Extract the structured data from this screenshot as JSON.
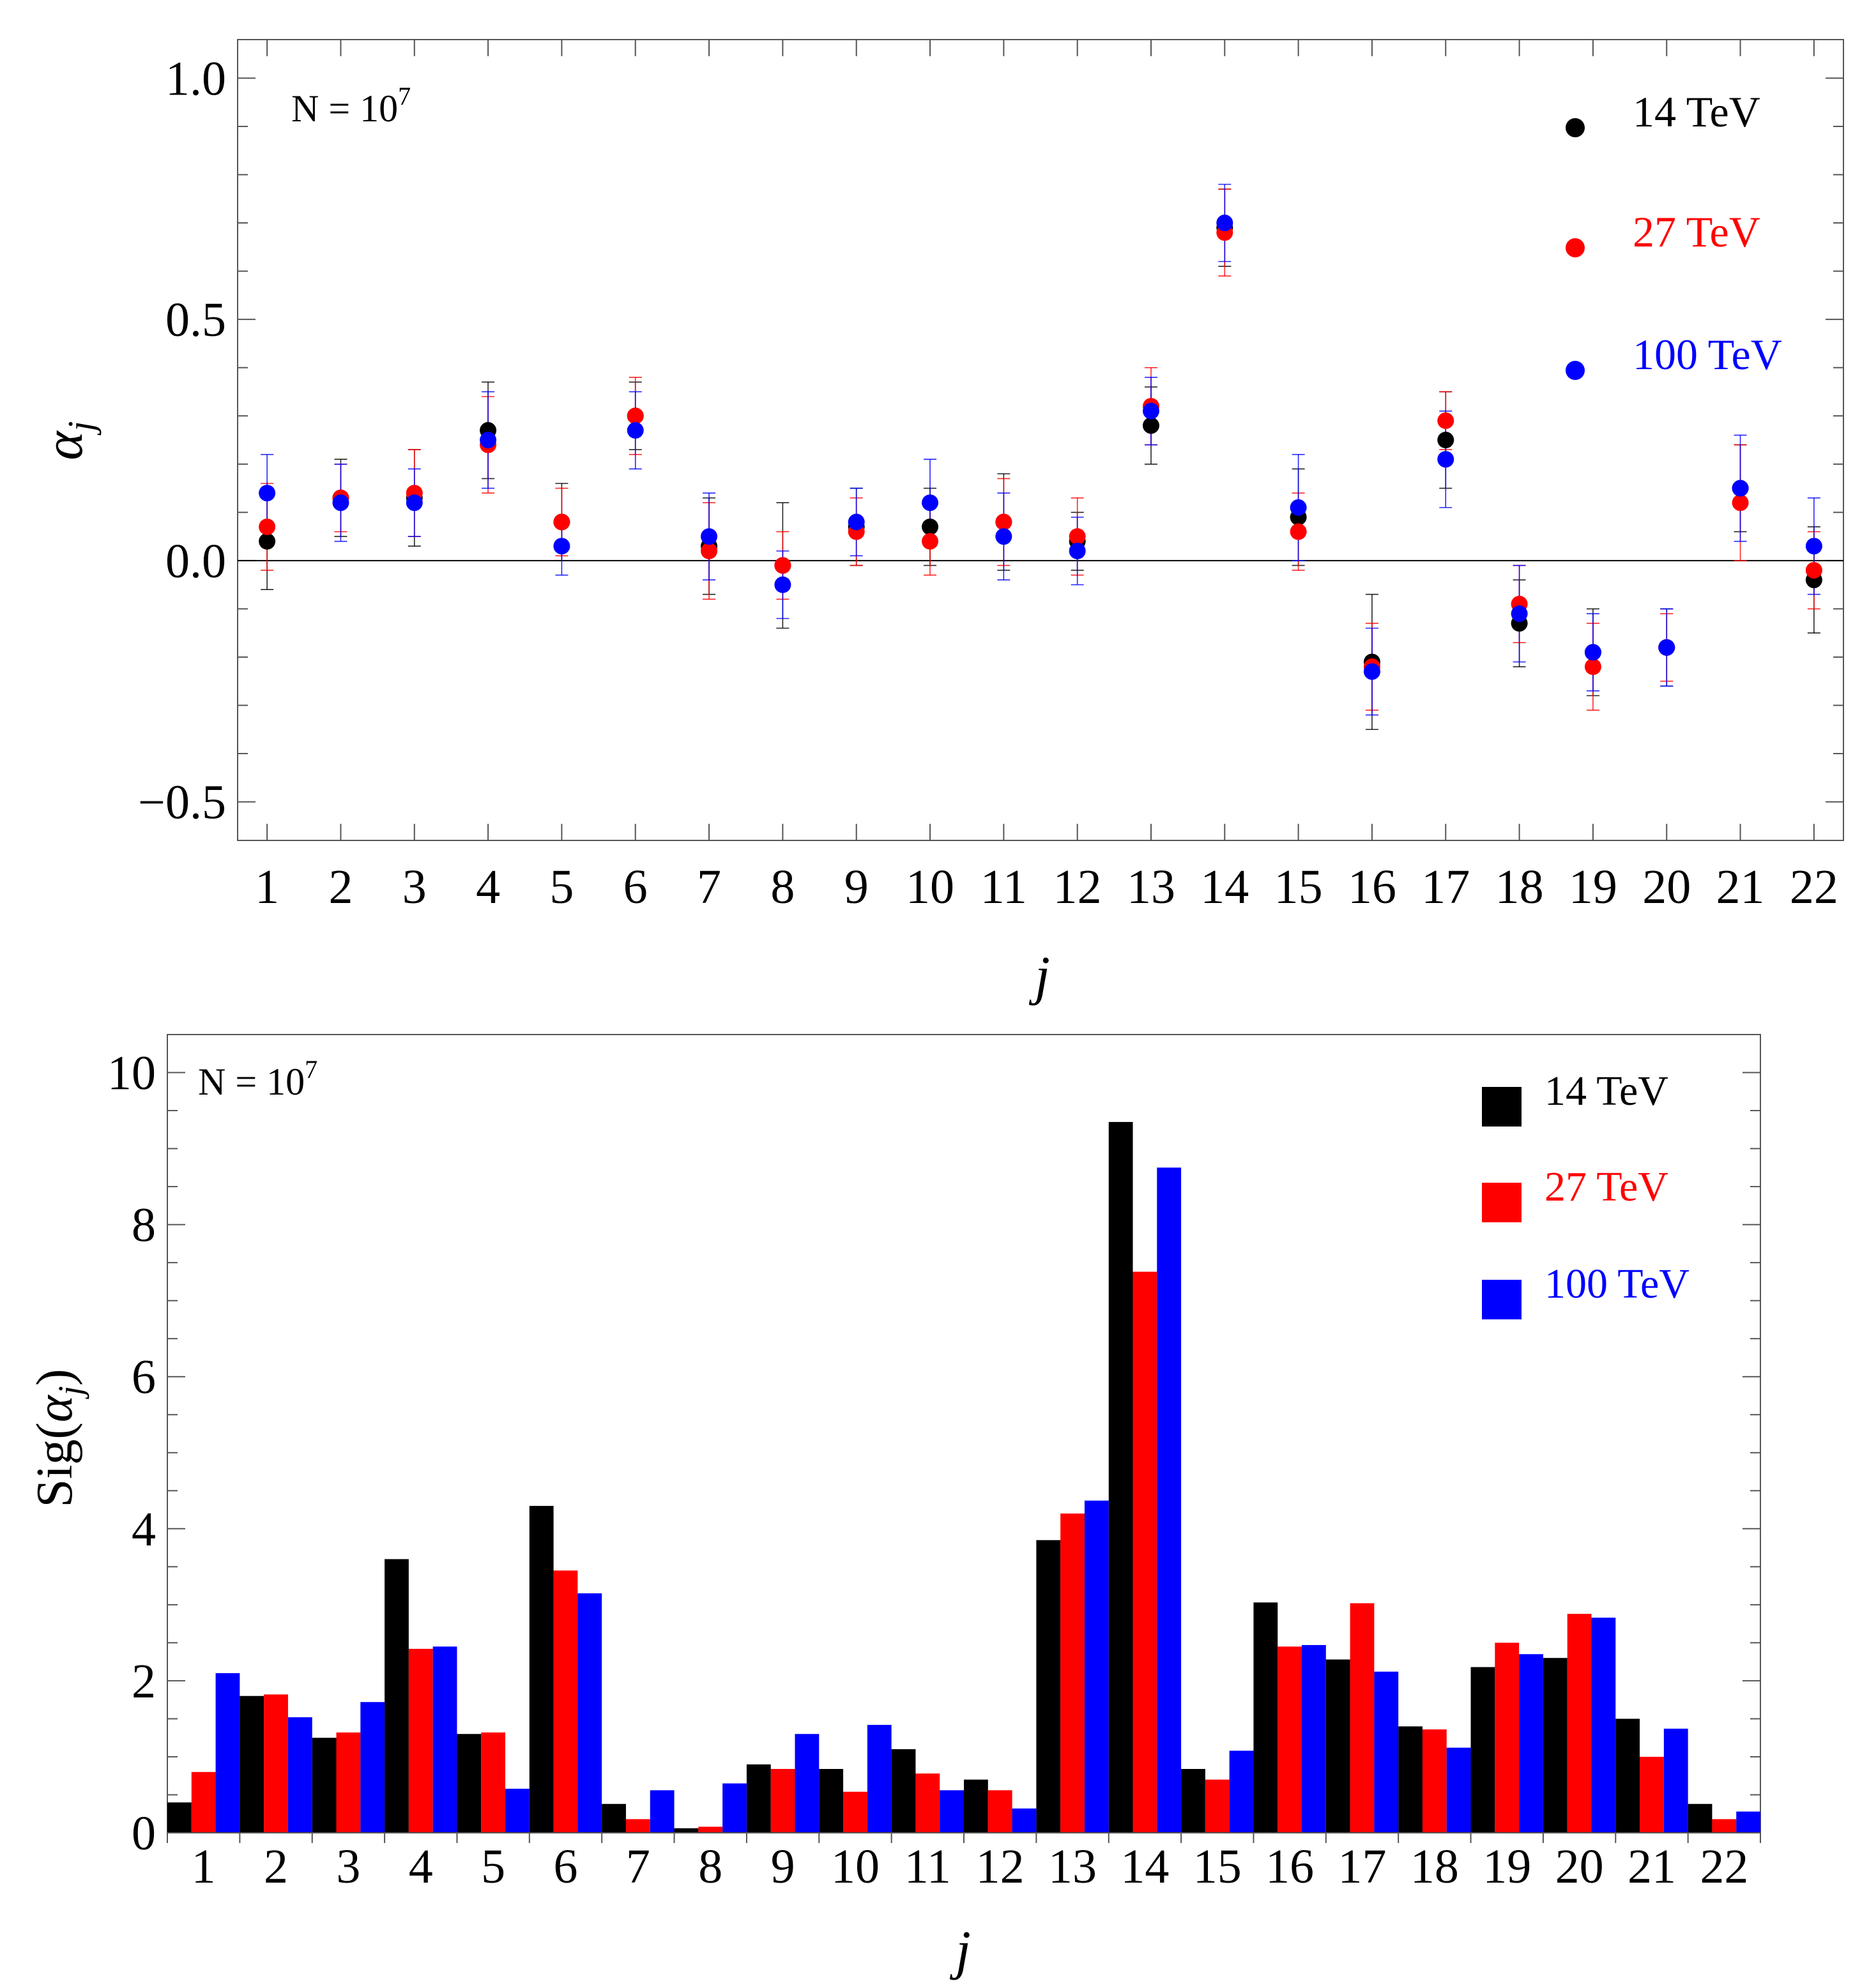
{
  "chart_data": [
    {
      "type": "scatter",
      "title": "",
      "annotation": "N = 10",
      "annotation_exponent": "7",
      "xlabel": "j",
      "ylabel": "α",
      "ylabel_subscript": "j",
      "xlim": [
        0.6,
        22.4
      ],
      "ylim": [
        -0.58,
        1.08
      ],
      "yticks": [
        {
          "value": -0.5,
          "label": "−0.5"
        },
        {
          "value": 0.0,
          "label": "0.0"
        },
        {
          "value": 0.5,
          "label": "0.5"
        },
        {
          "value": 1.0,
          "label": "1.0"
        }
      ],
      "categories": [
        "1",
        "2",
        "3",
        "4",
        "5",
        "6",
        "7",
        "8",
        "9",
        "10",
        "11",
        "12",
        "13",
        "14",
        "15",
        "16",
        "17",
        "18",
        "19",
        "20",
        "21",
        "22"
      ],
      "reference_line": 0,
      "legend_position": "top-right",
      "series": [
        {
          "name": "14 TeV",
          "color": "#000000",
          "values": [
            0.04,
            0.13,
            0.13,
            0.27,
            0.08,
            0.3,
            0.03,
            -0.01,
            0.07,
            0.07,
            0.08,
            0.04,
            0.28,
            0.69,
            0.09,
            -0.21,
            0.25,
            -0.13,
            -0.19,
            -0.18,
            0.15,
            -0.04
          ],
          "errors": [
            0.1,
            0.08,
            0.1,
            0.1,
            0.08,
            0.07,
            0.1,
            0.13,
            0.08,
            0.08,
            0.1,
            0.06,
            0.08,
            0.08,
            0.1,
            0.14,
            0.1,
            0.09,
            0.09,
            0.08,
            0.09,
            0.11
          ]
        },
        {
          "name": "27 TeV",
          "color": "#ff0000",
          "values": [
            0.07,
            0.13,
            0.14,
            0.24,
            0.08,
            0.3,
            0.02,
            -0.01,
            0.06,
            0.04,
            0.08,
            0.05,
            0.32,
            0.68,
            0.06,
            -0.22,
            0.29,
            -0.09,
            -0.22,
            -0.18,
            0.12,
            -0.02
          ],
          "errors": [
            0.09,
            0.07,
            0.09,
            0.1,
            0.07,
            0.08,
            0.1,
            0.07,
            0.07,
            0.07,
            0.09,
            0.08,
            0.08,
            0.09,
            0.08,
            0.09,
            0.06,
            0.08,
            0.09,
            0.07,
            0.12,
            0.08
          ]
        },
        {
          "name": "100 TeV",
          "color": "#0000ff",
          "values": [
            0.14,
            0.12,
            0.12,
            0.25,
            0.03,
            0.27,
            0.05,
            -0.05,
            0.08,
            0.12,
            0.05,
            0.02,
            0.31,
            0.7,
            0.11,
            -0.23,
            0.21,
            -0.11,
            -0.19,
            -0.18,
            0.15,
            0.03
          ],
          "errors": [
            0.08,
            0.08,
            0.07,
            0.1,
            0.06,
            0.08,
            0.09,
            0.07,
            0.07,
            0.09,
            0.09,
            0.07,
            0.07,
            0.08,
            0.11,
            0.09,
            0.1,
            0.1,
            0.08,
            0.08,
            0.11,
            0.1
          ]
        }
      ]
    },
    {
      "type": "bar",
      "title": "",
      "annotation": "N = 10",
      "annotation_exponent": "7",
      "xlabel": "j",
      "ylabel_prefix": "Sig(",
      "ylabel": "α",
      "ylabel_subscript": "j",
      "ylabel_suffix": ")",
      "xlim": [
        0.5,
        22.5
      ],
      "ylim": [
        0,
        10.5
      ],
      "yticks": [
        {
          "value": 0,
          "label": "0"
        },
        {
          "value": 2,
          "label": "2"
        },
        {
          "value": 4,
          "label": "4"
        },
        {
          "value": 6,
          "label": "6"
        },
        {
          "value": 8,
          "label": "8"
        },
        {
          "value": 10,
          "label": "10"
        }
      ],
      "categories": [
        "1",
        "2",
        "3",
        "4",
        "5",
        "6",
        "7",
        "8",
        "9",
        "10",
        "11",
        "12",
        "13",
        "14",
        "15",
        "16",
        "17",
        "18",
        "19",
        "20",
        "21",
        "22"
      ],
      "legend_position": "top-right",
      "series": [
        {
          "name": "14 TeV",
          "color": "#000000",
          "values": [
            0.4,
            1.8,
            1.25,
            3.6,
            1.3,
            4.3,
            0.38,
            0.06,
            0.9,
            0.84,
            1.1,
            0.7,
            3.85,
            9.35,
            0.84,
            3.03,
            2.28,
            1.4,
            2.18,
            2.3,
            1.5,
            0.38
          ]
        },
        {
          "name": "27 TeV",
          "color": "#ff0000",
          "values": [
            0.8,
            1.82,
            1.32,
            2.42,
            1.32,
            3.45,
            0.18,
            0.08,
            0.84,
            0.54,
            0.78,
            0.56,
            4.2,
            7.38,
            0.7,
            2.45,
            3.02,
            1.36,
            2.5,
            2.88,
            1.0,
            0.18
          ]
        },
        {
          "name": "100 TeV",
          "color": "#0000ff",
          "values": [
            2.1,
            1.52,
            1.72,
            2.45,
            0.58,
            3.15,
            0.56,
            0.65,
            1.3,
            1.42,
            0.56,
            0.32,
            4.37,
            8.75,
            1.08,
            2.47,
            2.12,
            1.12,
            2.35,
            2.83,
            1.37,
            0.28
          ]
        }
      ]
    }
  ]
}
